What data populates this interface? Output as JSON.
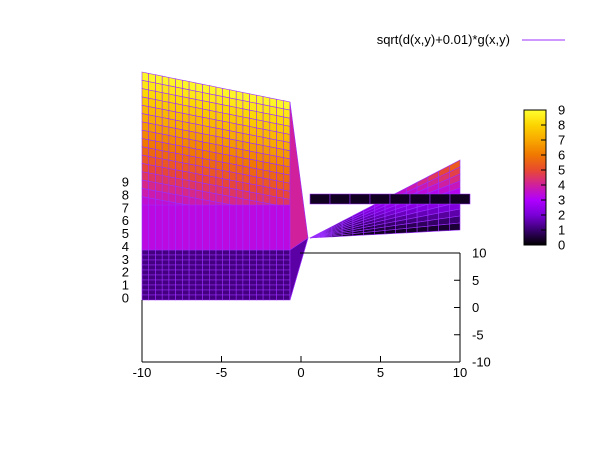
{
  "chart_data": {
    "type": "surface",
    "title": "",
    "xlabel": "",
    "ylabel": "",
    "zlabel": "",
    "legend": {
      "position": "top-right",
      "entries": [
        {
          "label": "sqrt(d(x,y)+0.01)*g(x,y)",
          "color": "#9b2fff"
        }
      ]
    },
    "xlim": [
      -10,
      10
    ],
    "ylim": [
      -10,
      10
    ],
    "zlim": [
      0,
      9
    ],
    "x_ticks": [
      "-10",
      "-5",
      "0",
      "5",
      "10"
    ],
    "y_ticks": [
      "10",
      "5",
      "0",
      "-5",
      "-10"
    ],
    "z_ticks": [
      "0",
      "1",
      "2",
      "3",
      "4",
      "5",
      "6",
      "7",
      "8",
      "9"
    ],
    "colorbar": {
      "range": [
        0,
        9
      ],
      "ticks": [
        "0",
        "1",
        "2",
        "3",
        "4",
        "5",
        "6",
        "7",
        "8",
        "9"
      ],
      "palette": [
        "#000000",
        "#3a0070",
        "#7a00d8",
        "#b000ff",
        "#d0209c",
        "#e84a30",
        "#f07800",
        "#f8a800",
        "#fcd400",
        "#ffff30"
      ]
    },
    "series": [
      {
        "name": "sqrt(d(x,y)+0.01)*g(x,y)",
        "back_left_max": 9,
        "back_right_max": 5.5,
        "front_level": 3.3,
        "center": [
          0,
          0
        ],
        "center_value": 0.1
      }
    ],
    "grid": false
  }
}
